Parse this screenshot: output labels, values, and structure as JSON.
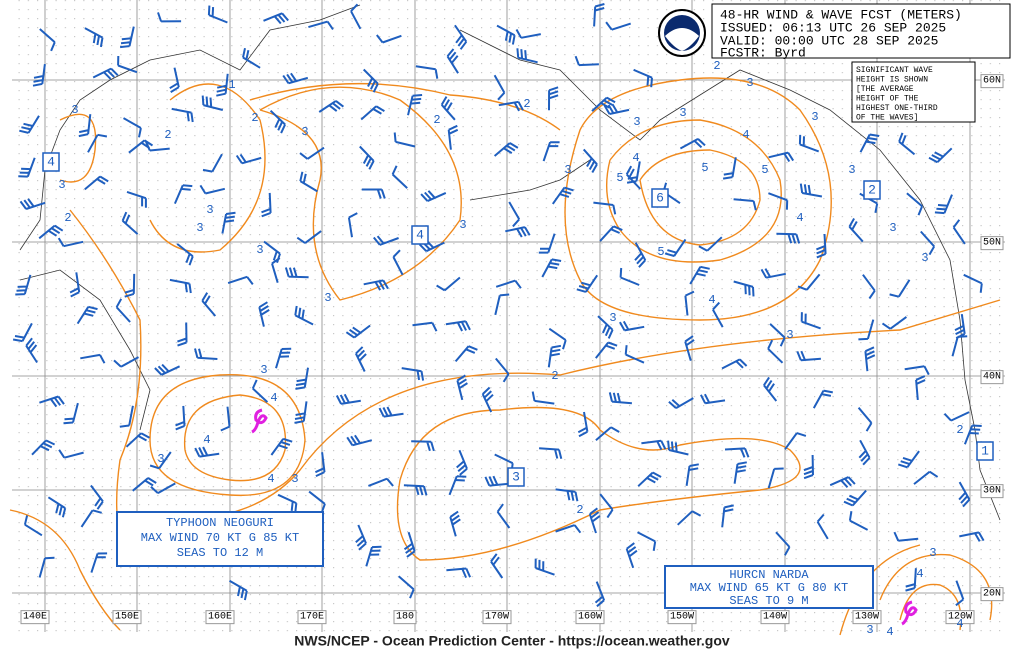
{
  "header": {
    "title": "48-HR WIND & WAVE FCST (METERS)",
    "issued": "ISSUED: 06:13 UTC 26 SEP 2025",
    "valid": "VALID:  00:00 UTC 28 SEP 2025",
    "forecaster": "FCSTR:  Byrd"
  },
  "note": [
    "SIGNIFICANT WAVE",
    "HEIGHT IS SHOWN",
    "[THE AVERAGE",
    "HEIGHT OF THE",
    "HIGHEST ONE-THIRD",
    "OF THE WAVES]"
  ],
  "lon_labels": [
    "140E",
    "150E",
    "160E",
    "170E",
    "180",
    "170W",
    "160W",
    "150W",
    "140W",
    "130W",
    "120W"
  ],
  "lat_labels": [
    "60N",
    "50N",
    "40N",
    "30N",
    "20N"
  ],
  "storms": [
    {
      "name": "TYPHOON NEOGURI",
      "wind": "MAX WIND 70 KT G 85 KT",
      "seas": "SEAS TO 12 M"
    },
    {
      "name": "HURCN NARDA",
      "wind": "MAX WIND 65 KT G 80 KT",
      "seas": "SEAS TO 9 M"
    }
  ],
  "boxed_values": [
    "4",
    "4",
    "6",
    "2",
    "3",
    "1"
  ],
  "contour_labels": [
    "1",
    "2",
    "2",
    "3",
    "2",
    "2",
    "3",
    "3",
    "2",
    "3",
    "3",
    "3",
    "3",
    "3",
    "3",
    "3",
    "3",
    "3",
    "2",
    "4",
    "5",
    "5",
    "4",
    "5",
    "4",
    "5",
    "4",
    "3",
    "3",
    "3",
    "3",
    "3",
    "3",
    "2",
    "3",
    "4",
    "4",
    "3",
    "4",
    "3",
    "2",
    "2",
    "3",
    "4",
    "3",
    "4",
    "4"
  ],
  "footer": "NWS/NCEP - Ocean Prediction Center - https://ocean.weather.gov"
}
